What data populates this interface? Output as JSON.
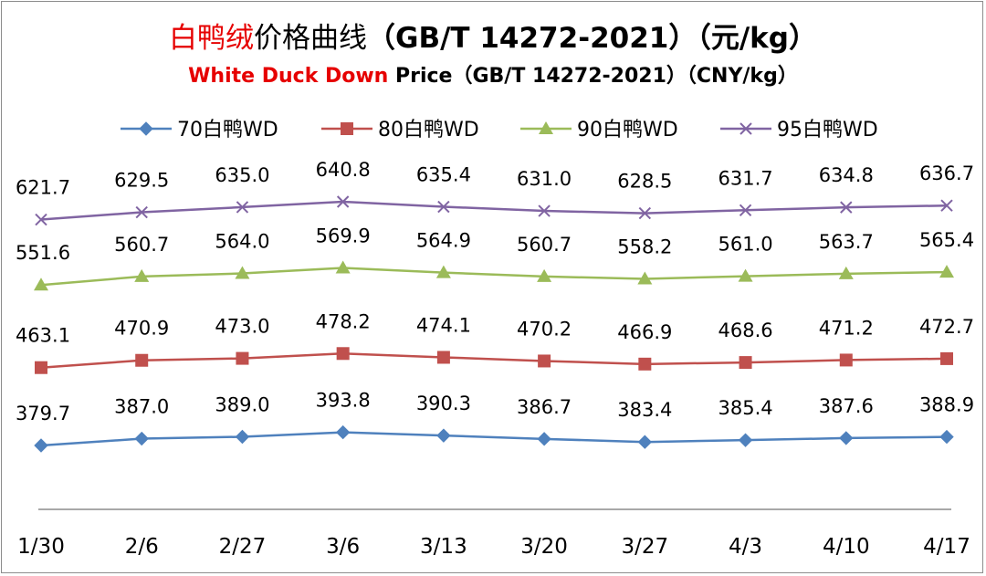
{
  "title": {
    "zh_red": "白鸭绒",
    "zh_black": "价格曲线",
    "zh_standard": "（GB/T 14272-2021）（元/kg）",
    "en_red": "White Duck Down",
    "en_black": " Price",
    "en_standard": "（GB/T 14272-2021）（CNY/kg）"
  },
  "chart_data": {
    "type": "line",
    "categories": [
      "1/30",
      "2/6",
      "2/27",
      "3/6",
      "3/13",
      "3/20",
      "3/27",
      "4/3",
      "4/10",
      "4/17"
    ],
    "series": [
      {
        "name": "70白鸭WD",
        "color": "#4f81bd",
        "marker": "diamond",
        "values": [
          379.7,
          387.0,
          389.0,
          393.8,
          390.3,
          386.7,
          383.4,
          385.4,
          387.6,
          388.9
        ]
      },
      {
        "name": "80白鸭WD",
        "color": "#c0504d",
        "marker": "square",
        "values": [
          463.1,
          470.9,
          473.0,
          478.2,
          474.1,
          470.2,
          466.9,
          468.6,
          471.2,
          472.7
        ]
      },
      {
        "name": "90白鸭WD",
        "color": "#9bbb59",
        "marker": "triangle",
        "values": [
          551.6,
          560.7,
          564.0,
          569.9,
          564.9,
          560.7,
          558.2,
          561.0,
          563.7,
          565.4
        ]
      },
      {
        "name": "95白鸭WD",
        "color": "#8064a2",
        "marker": "x",
        "values": [
          621.7,
          629.5,
          635.0,
          640.8,
          635.4,
          631.0,
          628.5,
          631.7,
          634.8,
          636.7
        ]
      }
    ],
    "ylim": [
      200,
      700
    ],
    "grid": false,
    "legend": "top",
    "data_labels": true,
    "value_format": "1 decimal"
  }
}
